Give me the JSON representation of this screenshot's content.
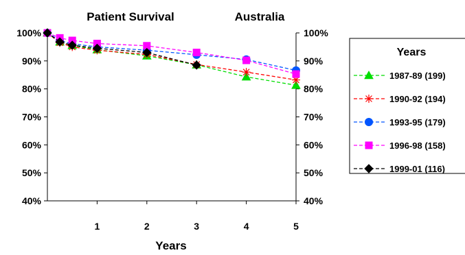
{
  "chart_data": {
    "type": "line",
    "title": "Patient Survival",
    "subtitle": "Australia",
    "xlabel": "Years",
    "ylabel": "",
    "xlim": [
      0,
      5
    ],
    "ylim": [
      40,
      100
    ],
    "x_ticks": [
      1,
      2,
      3,
      4,
      5
    ],
    "x_tick_labels": [
      "1",
      "2",
      "3",
      "4",
      "5"
    ],
    "y_ticks": [
      40,
      50,
      60,
      70,
      80,
      90,
      100
    ],
    "y_tick_labels_left": [
      "40%",
      "50%",
      "60%",
      "70%",
      "80%",
      "90%",
      "100%"
    ],
    "y_tick_labels_right": [
      "40%",
      "50%",
      "60%",
      "70%",
      "80%",
      "90%",
      "100%"
    ],
    "grid": false,
    "legend_title": "Years",
    "legend_position": "right",
    "series": [
      {
        "name": "1987-89  (199)",
        "color": "#00dd00",
        "marker": "triangle",
        "x": [
          0,
          0.25,
          0.5,
          1,
          2,
          3,
          4,
          5
        ],
        "y": [
          100,
          96.8,
          95.5,
          94.0,
          91.8,
          88.6,
          84.3,
          81.3
        ]
      },
      {
        "name": "1990-92  (194)",
        "color": "#ff0000",
        "marker": "asterisk",
        "x": [
          0,
          0.25,
          0.5,
          1,
          2,
          3,
          4,
          5
        ],
        "y": [
          100,
          96.5,
          95.0,
          93.8,
          92.3,
          88.7,
          86.0,
          83.2
        ]
      },
      {
        "name": "1993-95  (179)",
        "color": "#0055ff",
        "marker": "circle",
        "x": [
          0,
          0.25,
          0.5,
          1,
          2,
          3,
          4,
          5
        ],
        "y": [
          100,
          97.3,
          96.1,
          95.0,
          93.8,
          92.2,
          90.5,
          86.6
        ]
      },
      {
        "name": "1996-98  (158)",
        "color": "#ff00ff",
        "marker": "square",
        "x": [
          0,
          0.25,
          0.5,
          1,
          2,
          3,
          4,
          5
        ],
        "y": [
          100,
          98.2,
          97.3,
          96.2,
          95.4,
          93.0,
          90.2,
          85.3
        ]
      },
      {
        "name": "1999-01  (116)",
        "color": "#000000",
        "marker": "diamond",
        "x": [
          0,
          0.25,
          0.5,
          1,
          2,
          3
        ],
        "y": [
          100,
          96.8,
          95.6,
          94.5,
          93.0,
          88.5
        ]
      }
    ]
  }
}
